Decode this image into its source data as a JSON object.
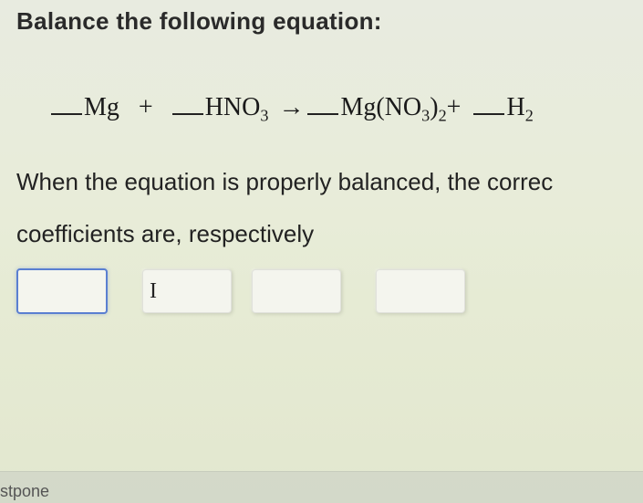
{
  "heading": "Balance the following equation:",
  "equation": {
    "term1": {
      "blank": true,
      "species": "Mg"
    },
    "plus1": "+",
    "term2": {
      "blank": true,
      "species": "HNO",
      "sub": "3"
    },
    "arrow": "→",
    "term3": {
      "blank": true,
      "species": "Mg(NO",
      "sub": "3",
      "close": ")",
      "sub2": "2"
    },
    "plus2": "+",
    "term4": {
      "blank": true,
      "species": "H",
      "sub": "2"
    }
  },
  "line2": "When the equation is properly balanced, the correc",
  "line3": "coefficients are, respectively",
  "inputs": {
    "count": 4,
    "values": [
      "",
      "",
      "",
      ""
    ],
    "cursor_glyph": "I",
    "active_index": 0,
    "cursor_hover_index": 1,
    "box_bg": "#f4f5ee",
    "active_border": "#5a7fd1"
  },
  "bottom_button": "stpone",
  "colors": {
    "bg_top": "#e8ebe0",
    "bg_bottom": "#e2e7cf",
    "text": "#222222",
    "bar_bg": "rgba(210,215,200,0.9)"
  },
  "fonts": {
    "heading_size_pt": 20,
    "equation_size_pt": 21,
    "body_size_pt": 20,
    "equation_family": "Times New Roman"
  }
}
